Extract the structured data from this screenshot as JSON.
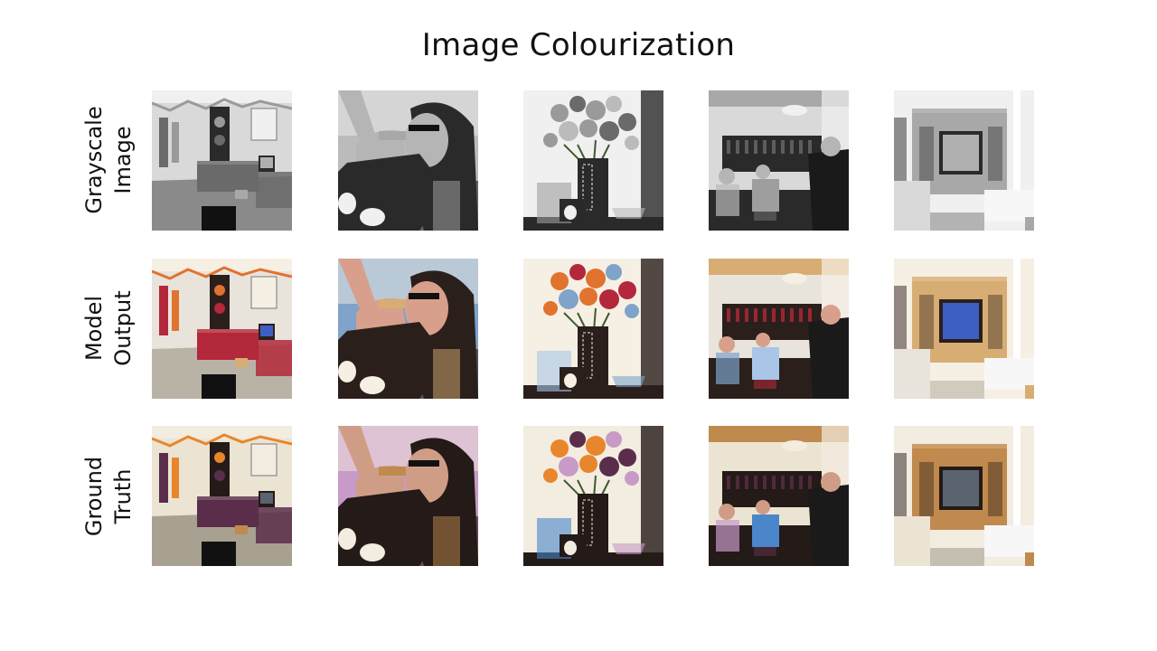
{
  "title": "Image Colourization",
  "rows": [
    {
      "label_line1": "Grayscale",
      "label_line2": "Image",
      "mode": "gray"
    },
    {
      "label_line1": "Model",
      "label_line2": "Output",
      "mode": "model"
    },
    {
      "label_line1": "Ground",
      "label_line2": "Truth",
      "mode": "truth"
    }
  ],
  "scenes": [
    "living-room-with-posters",
    "woman-eating",
    "flower-vase",
    "bar-with-people",
    "tv-cabinet-room"
  ]
}
